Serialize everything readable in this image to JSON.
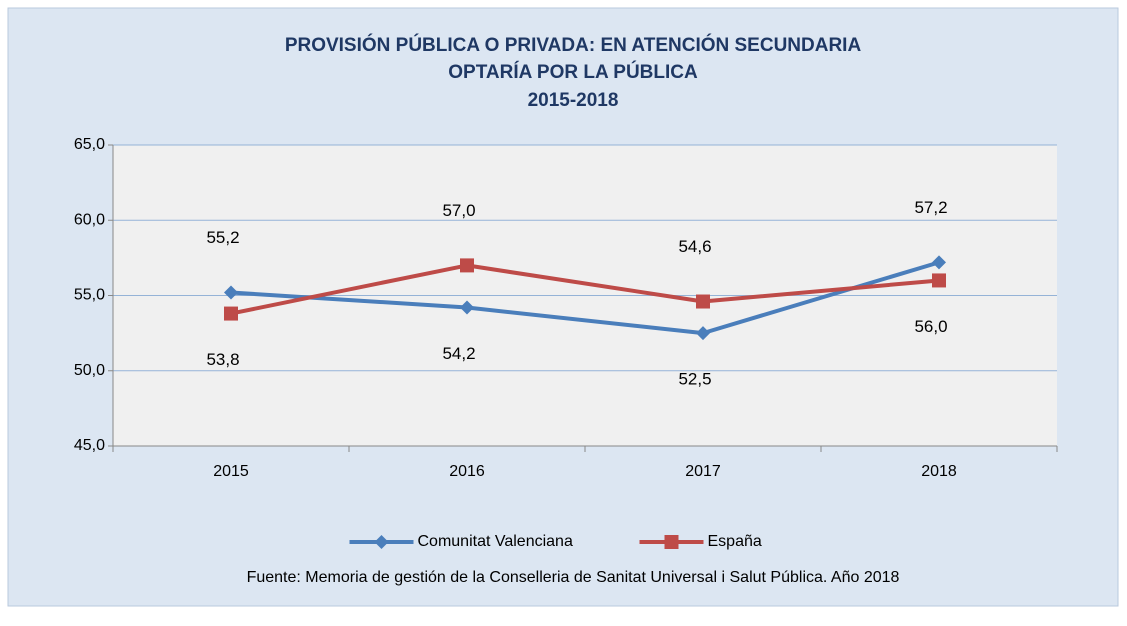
{
  "chart_data": {
    "type": "line",
    "title": [
      "PROVISIÓN  PÚBLICA  O PRIVADA:  EN ATENCIÓN  SECUNDARIA",
      "OPTARÍA  POR  LA PÚBLICA",
      "2015-2018"
    ],
    "categories": [
      "2015",
      "2016",
      "2017",
      "2018"
    ],
    "series": [
      {
        "name": "Comunitat Valenciana",
        "color": "#4a7ebb",
        "marker": "diamond",
        "values": [
          55.2,
          54.2,
          52.5,
          57.2
        ],
        "value_labels": [
          "55,2",
          "54,2",
          "52,5",
          "57,2"
        ]
      },
      {
        "name": "España",
        "color": "#be4b48",
        "marker": "square",
        "values": [
          53.8,
          57.0,
          54.6,
          56.0
        ],
        "value_labels": [
          "53,8",
          "57,0",
          "54,6",
          "56,0"
        ]
      }
    ],
    "ylim": [
      45,
      65
    ],
    "yticks": [
      {
        "value": 45,
        "label": "45,0"
      },
      {
        "value": 50,
        "label": "50,0"
      },
      {
        "value": 55,
        "label": "55,0"
      },
      {
        "value": 60,
        "label": "60,0"
      },
      {
        "value": 65,
        "label": "65,0"
      }
    ],
    "grid": true,
    "legend": "bottom",
    "source": "Fuente: Memoria de gestión de la Conselleria de Sanitat Universal i Salut Pública. Año 2018"
  }
}
